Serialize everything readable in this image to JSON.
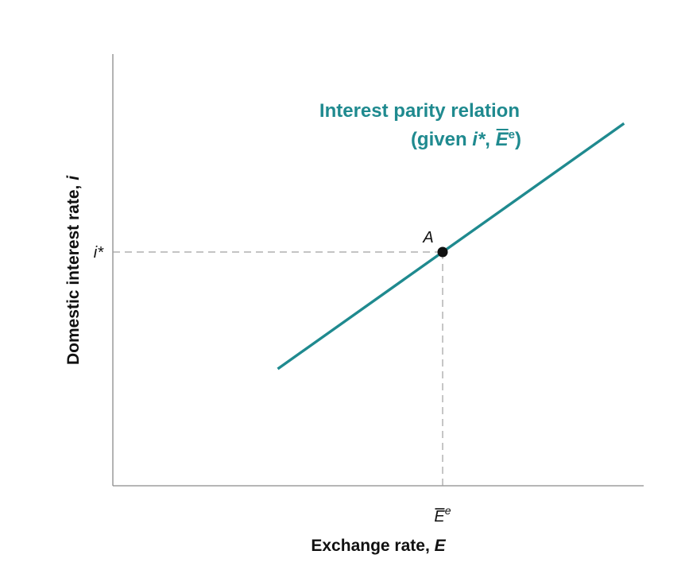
{
  "chart_data": {
    "type": "line",
    "title": "",
    "xlabel": "Exchange rate, ",
    "xlabel_var": "E",
    "ylabel": "Domestic interest rate, ",
    "ylabel_var": "i",
    "x_ticks": [
      {
        "value": 1.0,
        "label": "E",
        "superscript": "e",
        "overbar": true
      }
    ],
    "y_ticks": [
      {
        "value": 1.0,
        "label": "i*"
      }
    ],
    "xlim": [
      0,
      1.6
    ],
    "ylim": [
      0,
      1.6
    ],
    "grid": false,
    "series": [
      {
        "name": "Interest parity relation",
        "x": [
          0.5,
          1.0,
          1.55
        ],
        "y": [
          0.5,
          1.0,
          1.55
        ],
        "color": "#1f8a8f",
        "label_line1": "Interest parity relation",
        "label_line2_parts": {
          "open": "(given ",
          "istar": "i*",
          "comma": ", ",
          "E": "E",
          "sup": "e",
          "close": ")"
        }
      }
    ],
    "points": [
      {
        "name": "A",
        "x": 1.0,
        "y": 1.0
      }
    ],
    "guides": [
      {
        "type": "horizontal",
        "y": 1.0,
        "to_x": 1.0,
        "style": "dashed"
      },
      {
        "type": "vertical",
        "x": 1.0,
        "to_y": 1.0,
        "style": "dashed"
      }
    ]
  }
}
